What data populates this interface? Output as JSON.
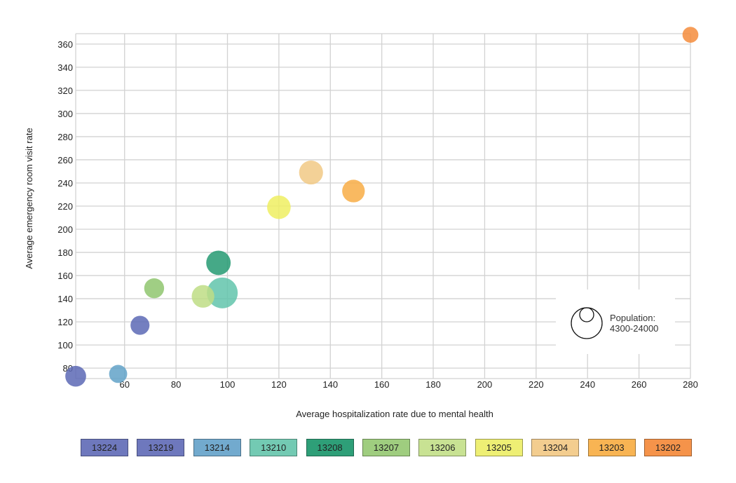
{
  "chart_data": {
    "type": "scatter",
    "subtype": "bubble",
    "xlabel": "Average hospitalization rate due to mental health",
    "ylabel": "Average emergency room visit rate",
    "xlim": [
      41,
      280
    ],
    "ylim": [
      71,
      369
    ],
    "x_ticks": [
      "60",
      "80",
      "100",
      "120",
      "140",
      "160",
      "180",
      "200",
      "220",
      "240",
      "260",
      "280"
    ],
    "y_ticks": [
      "80",
      "100",
      "120",
      "140",
      "160",
      "180",
      "200",
      "220",
      "240",
      "260",
      "280",
      "300",
      "320",
      "340",
      "360"
    ],
    "grid": true,
    "size_legend": {
      "title": "Population:",
      "range": "4300-24000"
    },
    "points": [
      {
        "zip": "13224",
        "x": 41,
        "y": 73,
        "size": 0.45,
        "color": "#5c68b5"
      },
      {
        "zip": "13219",
        "x": 66,
        "y": 117,
        "size": 0.35,
        "color": "#5c68b5"
      },
      {
        "zip": "13214",
        "x": 57.5,
        "y": 75,
        "size": 0.3,
        "color": "#62a2c8"
      },
      {
        "zip": "13210",
        "x": 98,
        "y": 145,
        "size": 1.0,
        "color": "#62c4ab"
      },
      {
        "zip": "13208",
        "x": 96.5,
        "y": 171,
        "size": 0.65,
        "color": "#249a72"
      },
      {
        "zip": "13207",
        "x": 71.5,
        "y": 149,
        "size": 0.4,
        "color": "#8fc66f"
      },
      {
        "zip": "13206",
        "x": 90.5,
        "y": 142,
        "size": 0.55,
        "color": "#bedd85"
      },
      {
        "zip": "13205",
        "x": 120,
        "y": 219,
        "size": 0.6,
        "color": "#eeef62"
      },
      {
        "zip": "13204",
        "x": 132.5,
        "y": 249,
        "size": 0.62,
        "color": "#f1c985"
      },
      {
        "zip": "13203",
        "x": 149,
        "y": 233,
        "size": 0.55,
        "color": "#f8ad45"
      },
      {
        "zip": "13202",
        "x": 280,
        "y": 368,
        "size": 0.18,
        "color": "#f48c3c"
      }
    ]
  },
  "legend": [
    {
      "label": "13224",
      "color": "#6e78bd"
    },
    {
      "label": "13219",
      "color": "#6e78bd"
    },
    {
      "label": "13214",
      "color": "#72aace"
    },
    {
      "label": "13210",
      "color": "#73cab3"
    },
    {
      "label": "13208",
      "color": "#2e9f78"
    },
    {
      "label": "13207",
      "color": "#9fcd7f"
    },
    {
      "label": "13206",
      "color": "#c8e293"
    },
    {
      "label": "13205",
      "color": "#eeef74"
    },
    {
      "label": "13204",
      "color": "#f3cd8f"
    },
    {
      "label": "13203",
      "color": "#f8b453"
    },
    {
      "label": "13202",
      "color": "#f5934a"
    }
  ]
}
